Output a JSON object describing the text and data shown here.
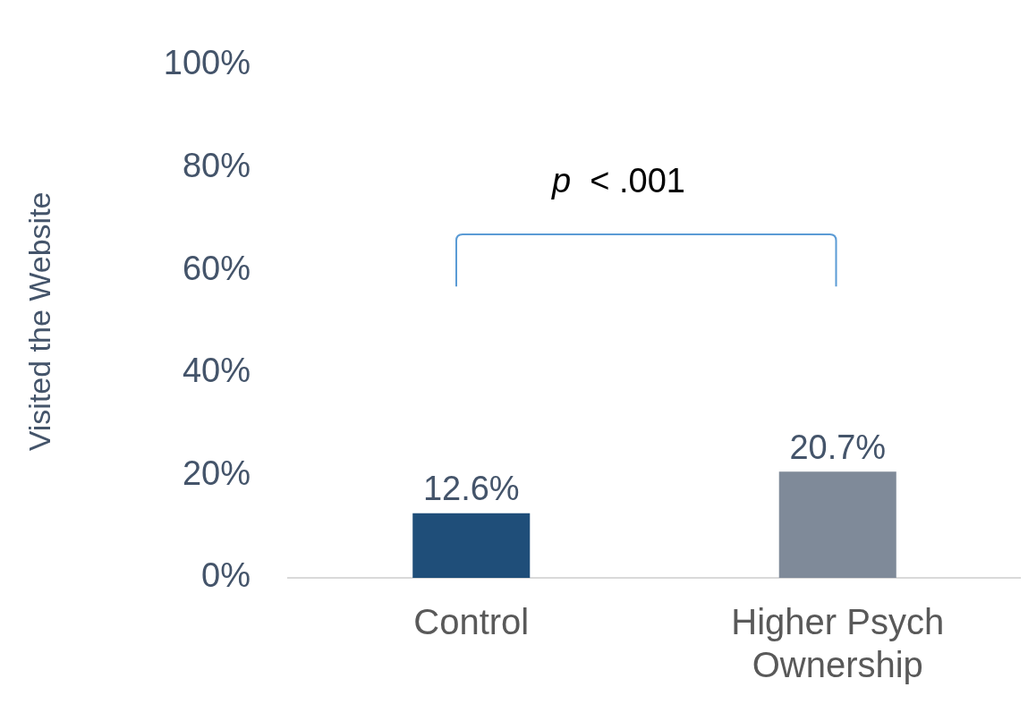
{
  "chart_data": {
    "type": "bar",
    "ylabel": "Visited the Website",
    "categories": [
      "Control",
      "Higher Psych Ownership"
    ],
    "values": [
      12.6,
      20.7
    ],
    "colors": [
      "#1f4e79",
      "#7f8a99"
    ],
    "value_labels": [
      "12.6%",
      "20.7%"
    ],
    "ylim": [
      0,
      100
    ],
    "yticks": [
      {
        "value": 0,
        "label": "0%"
      },
      {
        "value": 20,
        "label": "20%"
      },
      {
        "value": 40,
        "label": "40%"
      },
      {
        "value": 60,
        "label": "60%"
      },
      {
        "value": 80,
        "label": "80%"
      },
      {
        "value": 100,
        "label": "100%"
      }
    ],
    "grid": false,
    "legend": false,
    "annotations": [
      "p < .001"
    ]
  }
}
